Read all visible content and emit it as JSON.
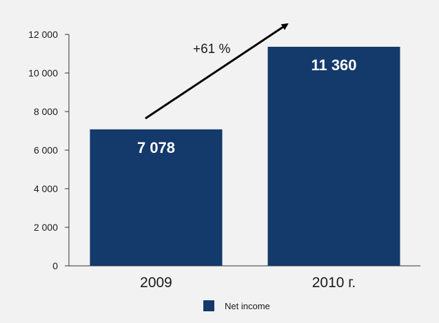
{
  "chart_data": {
    "type": "bar",
    "categories": [
      "2009",
      "2010 г."
    ],
    "series": [
      {
        "name": "Net income",
        "values": [
          7078,
          11360
        ],
        "value_labels": [
          "7 078",
          "11 360"
        ]
      }
    ],
    "ylim": [
      0,
      12000
    ],
    "yticks": [
      0,
      2000,
      4000,
      6000,
      8000,
      10000,
      12000
    ],
    "ytick_labels": [
      "0",
      "2 000",
      "4 000",
      "6 000",
      "8 000",
      "10 000",
      "12 000"
    ],
    "grid": false,
    "legend_position": "bottom",
    "bar_color": "#14396b",
    "annotation": {
      "text": "+61 %",
      "type": "growth-arrow"
    }
  }
}
